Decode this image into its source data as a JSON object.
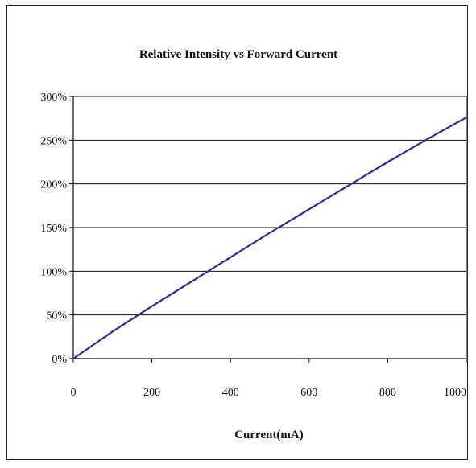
{
  "chart_data": {
    "type": "line",
    "title": "Relative Intensity vs Forward Current",
    "xlabel": "Current(mA)",
    "ylabel": "",
    "xlim": [
      0,
      1000
    ],
    "ylim": [
      0,
      300
    ],
    "x_ticks": [
      0,
      200,
      400,
      600,
      800,
      1000
    ],
    "x_tick_labels": [
      "0",
      "200",
      "400",
      "600",
      "800",
      "1000"
    ],
    "y_ticks": [
      0,
      50,
      100,
      150,
      200,
      250,
      300
    ],
    "y_tick_labels": [
      "0%",
      "50%",
      "100%",
      "150%",
      "200%",
      "250%",
      "300%"
    ],
    "grid": "horizontal",
    "legend": "none",
    "series": [
      {
        "color": "#2b2f8c",
        "x": [
          0,
          100,
          200,
          300,
          400,
          500,
          600,
          700,
          800,
          900,
          1000
        ],
        "y": [
          0,
          31,
          60,
          88,
          116,
          144,
          171,
          198,
          225,
          251,
          276
        ]
      }
    ]
  }
}
